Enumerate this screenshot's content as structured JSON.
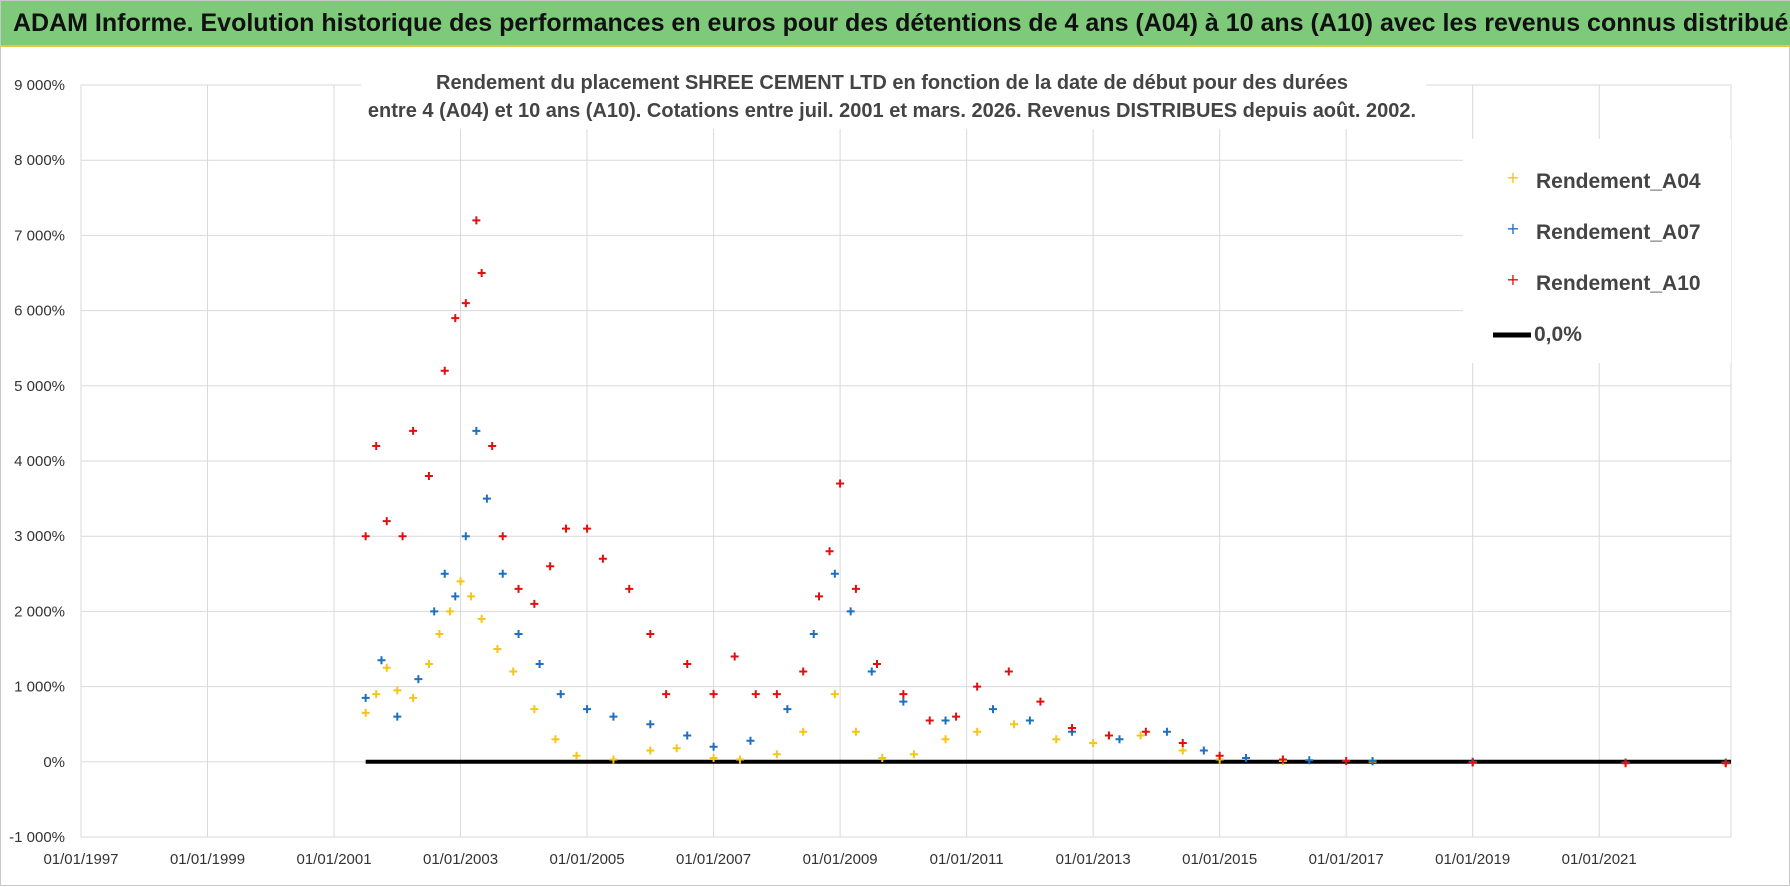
{
  "banner": {
    "title": "ADAM Informe. Evolution historique des performances en euros pour des détentions de 4 ans (A04) à 10 ans (A10) avec les revenus connus distribués"
  },
  "colors": {
    "banner_bg": "#7ec97a",
    "banner_border": "#e8c640",
    "A04": "#f5c518",
    "A07": "#1f6fbf",
    "A10": "#e01010",
    "zero_line": "#000000",
    "grid": "#d9d9d9"
  },
  "chart_data": {
    "type": "scatter",
    "title_line1": "Rendement du placement SHREE CEMENT LTD en fonction de la date de début pour des durées",
    "title_line2": "entre 4 (A04) et 10 ans (A10).  Cotations entre juil. 2001 et mars. 2026. Revenus DISTRIBUES depuis août. 2002.",
    "xlabel": "",
    "ylabel": "",
    "x_ticks": [
      "01/01/1997",
      "01/01/1999",
      "01/01/2001",
      "01/01/2003",
      "01/01/2005",
      "01/01/2007",
      "01/01/2009",
      "01/01/2011",
      "01/01/2013",
      "01/01/2015",
      "01/01/2017",
      "01/01/2019",
      "01/01/2021"
    ],
    "y_ticks": [
      "-1 000%",
      "0%",
      "1 000%",
      "2 000%",
      "3 000%",
      "4 000%",
      "5 000%",
      "6 000%",
      "7 000%",
      "8 000%",
      "9 000%"
    ],
    "xlim": [
      "1997-01-01",
      "2023-02-01"
    ],
    "ylim": [
      -1000,
      9000
    ],
    "grid": true,
    "legend_position": "top-right",
    "series": [
      {
        "name": "Rendement_A04",
        "marker": "plus",
        "points": [
          [
            "2001-07",
            650
          ],
          [
            "2001-09",
            900
          ],
          [
            "2001-11",
            1250
          ],
          [
            "2002-01",
            950
          ],
          [
            "2002-04",
            850
          ],
          [
            "2002-07",
            1300
          ],
          [
            "2002-09",
            1700
          ],
          [
            "2002-11",
            2000
          ],
          [
            "2003-01",
            2400
          ],
          [
            "2003-03",
            2200
          ],
          [
            "2003-05",
            1900
          ],
          [
            "2003-08",
            1500
          ],
          [
            "2003-11",
            1200
          ],
          [
            "2004-03",
            700
          ],
          [
            "2004-07",
            300
          ],
          [
            "2004-11",
            80
          ],
          [
            "2005-06",
            30
          ],
          [
            "2006-01",
            150
          ],
          [
            "2006-06",
            180
          ],
          [
            "2007-01",
            50
          ],
          [
            "2007-06",
            30
          ],
          [
            "2008-01",
            100
          ],
          [
            "2008-06",
            400
          ],
          [
            "2008-12",
            900
          ],
          [
            "2009-04",
            400
          ],
          [
            "2009-09",
            50
          ],
          [
            "2010-03",
            100
          ],
          [
            "2010-09",
            300
          ],
          [
            "2011-03",
            400
          ],
          [
            "2011-10",
            500
          ],
          [
            "2012-06",
            300
          ],
          [
            "2013-01",
            250
          ],
          [
            "2013-10",
            350
          ],
          [
            "2014-06",
            150
          ],
          [
            "2015-01",
            30
          ],
          [
            "2016-01",
            10
          ],
          [
            "2017-06",
            0
          ],
          [
            "2019-01",
            -10
          ],
          [
            "2021-06",
            -10
          ],
          [
            "2023-01",
            -20
          ]
        ]
      },
      {
        "name": "Rendement_A07",
        "marker": "plus",
        "points": [
          [
            "2001-07",
            850
          ],
          [
            "2001-10",
            1350
          ],
          [
            "2002-01",
            600
          ],
          [
            "2002-05",
            1100
          ],
          [
            "2002-08",
            2000
          ],
          [
            "2002-10",
            2500
          ],
          [
            "2002-12",
            2200
          ],
          [
            "2003-02",
            3000
          ],
          [
            "2003-04",
            4400
          ],
          [
            "2003-06",
            3500
          ],
          [
            "2003-09",
            2500
          ],
          [
            "2003-12",
            1700
          ],
          [
            "2004-04",
            1300
          ],
          [
            "2004-08",
            900
          ],
          [
            "2005-01",
            700
          ],
          [
            "2005-06",
            600
          ],
          [
            "2006-01",
            500
          ],
          [
            "2006-08",
            350
          ],
          [
            "2007-01",
            200
          ],
          [
            "2007-08",
            280
          ],
          [
            "2008-03",
            700
          ],
          [
            "2008-08",
            1700
          ],
          [
            "2008-12",
            2500
          ],
          [
            "2009-03",
            2000
          ],
          [
            "2009-07",
            1200
          ],
          [
            "2010-01",
            800
          ],
          [
            "2010-09",
            550
          ],
          [
            "2011-06",
            700
          ],
          [
            "2012-01",
            550
          ],
          [
            "2012-09",
            400
          ],
          [
            "2013-06",
            300
          ],
          [
            "2014-03",
            400
          ],
          [
            "2014-10",
            150
          ],
          [
            "2015-06",
            50
          ],
          [
            "2016-06",
            20
          ],
          [
            "2017-06",
            10
          ],
          [
            "2019-01",
            0
          ],
          [
            "2021-06",
            -10
          ],
          [
            "2023-01",
            -10
          ]
        ]
      },
      {
        "name": "Rendement_A10",
        "marker": "plus",
        "points": [
          [
            "2001-07",
            3000
          ],
          [
            "2001-09",
            4200
          ],
          [
            "2001-11",
            3200
          ],
          [
            "2002-02",
            3000
          ],
          [
            "2002-04",
            4400
          ],
          [
            "2002-07",
            3800
          ],
          [
            "2002-10",
            5200
          ],
          [
            "2002-12",
            5900
          ],
          [
            "2003-02",
            6100
          ],
          [
            "2003-04",
            7200
          ],
          [
            "2003-05",
            6500
          ],
          [
            "2003-07",
            4200
          ],
          [
            "2003-09",
            3000
          ],
          [
            "2003-12",
            2300
          ],
          [
            "2004-03",
            2100
          ],
          [
            "2004-06",
            2600
          ],
          [
            "2004-09",
            3100
          ],
          [
            "2005-01",
            3100
          ],
          [
            "2005-04",
            2700
          ],
          [
            "2005-09",
            2300
          ],
          [
            "2006-01",
            1700
          ],
          [
            "2006-04",
            900
          ],
          [
            "2006-08",
            1300
          ],
          [
            "2007-01",
            900
          ],
          [
            "2007-05",
            1400
          ],
          [
            "2007-09",
            900
          ],
          [
            "2008-01",
            900
          ],
          [
            "2008-06",
            1200
          ],
          [
            "2008-09",
            2200
          ],
          [
            "2008-11",
            2800
          ],
          [
            "2009-01",
            3700
          ],
          [
            "2009-04",
            2300
          ],
          [
            "2009-08",
            1300
          ],
          [
            "2010-01",
            900
          ],
          [
            "2010-06",
            550
          ],
          [
            "2010-11",
            600
          ],
          [
            "2011-03",
            1000
          ],
          [
            "2011-09",
            1200
          ],
          [
            "2012-03",
            800
          ],
          [
            "2012-09",
            450
          ],
          [
            "2013-04",
            350
          ],
          [
            "2013-11",
            400
          ],
          [
            "2014-06",
            250
          ],
          [
            "2015-01",
            80
          ],
          [
            "2016-01",
            30
          ],
          [
            "2017-01",
            10
          ],
          [
            "2019-01",
            -10
          ],
          [
            "2021-06",
            -20
          ],
          [
            "2023-01",
            -20
          ]
        ]
      }
    ],
    "reference_line": {
      "name": "0,0%",
      "y": 0,
      "x_start": "2001-07",
      "x_end": "2023-02"
    }
  }
}
